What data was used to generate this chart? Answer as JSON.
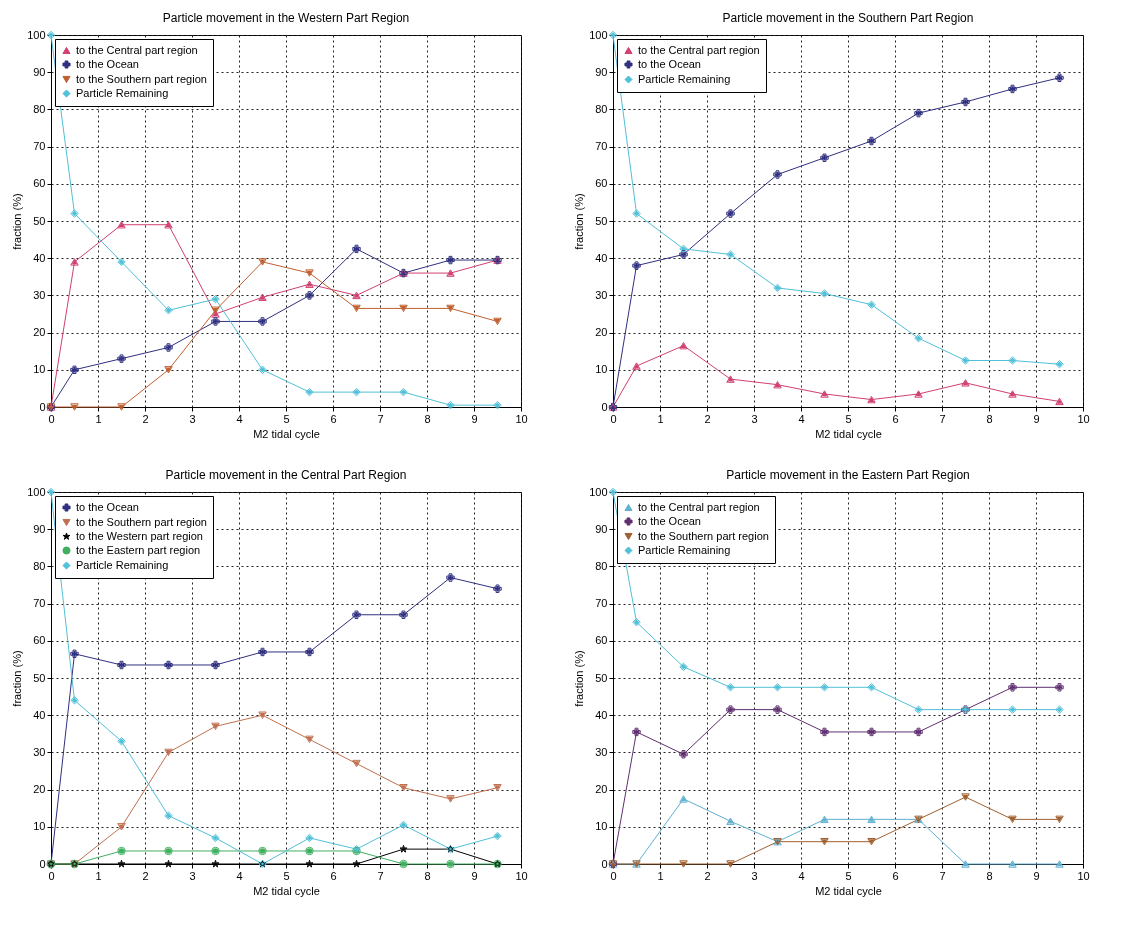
{
  "chart_data": [
    {
      "type": "line",
      "title": "Particle movement in the Western Part Region",
      "xlabel": "M2 tidal cycle",
      "ylabel": "fraction (%)",
      "x": [
        0,
        0.5,
        1.5,
        2.5,
        3.5,
        4.5,
        5.5,
        6.5,
        7.5,
        8.5,
        9.5
      ],
      "xlim": [
        0,
        10
      ],
      "xticks": [
        0,
        1,
        2,
        3,
        4,
        5,
        6,
        7,
        8,
        9,
        10
      ],
      "ylim": [
        0,
        100
      ],
      "yticks": [
        0,
        10,
        20,
        30,
        40,
        50,
        60,
        70,
        80,
        90,
        100
      ],
      "grid": true,
      "legend": "top left",
      "series": [
        {
          "name": "to the Central part region",
          "color": "#d04070",
          "marker": "triangle",
          "values": [
            0,
            39,
            49,
            49,
            25,
            29.5,
            33,
            30,
            36,
            36,
            39.5
          ]
        },
        {
          "name": "to the Ocean",
          "color": "#303080",
          "marker": "cross",
          "values": [
            0,
            10,
            13,
            16,
            23,
            23,
            30,
            42.5,
            36,
            39.5,
            39.5
          ]
        },
        {
          "name": "to the Southern part region",
          "color": "#c06030",
          "marker": "triangle-down",
          "values": [
            0,
            0,
            0,
            10,
            26,
            39,
            36,
            26.5,
            26.5,
            26.5,
            23
          ]
        },
        {
          "name": "Particle Remaining",
          "color": "#50c0d8",
          "marker": "diamond",
          "values": [
            100,
            52,
            39,
            26,
            29,
            10,
            4,
            4,
            4,
            0.5,
            0.5
          ]
        }
      ]
    },
    {
      "type": "line",
      "title": "Particle movement in the Southern Part Region",
      "xlabel": "M2 tidal cycle",
      "ylabel": "fraction (%)",
      "x": [
        0,
        0.5,
        1.5,
        2.5,
        3.5,
        4.5,
        5.5,
        6.5,
        7.5,
        8.5,
        9.5
      ],
      "xlim": [
        0,
        10
      ],
      "xticks": [
        0,
        1,
        2,
        3,
        4,
        5,
        6,
        7,
        8,
        9,
        10
      ],
      "ylim": [
        0,
        100
      ],
      "yticks": [
        0,
        10,
        20,
        30,
        40,
        50,
        60,
        70,
        80,
        90,
        100
      ],
      "grid": true,
      "legend": "top left",
      "series": [
        {
          "name": "to the Central part region",
          "color": "#d04070",
          "marker": "triangle",
          "values": [
            0,
            11,
            16.5,
            7.5,
            6,
            3.5,
            2,
            3.5,
            6.5,
            3.5,
            1.5
          ]
        },
        {
          "name": "to the Ocean",
          "color": "#303080",
          "marker": "cross",
          "values": [
            0,
            38,
            41,
            52,
            62.5,
            67,
            71.5,
            79,
            82,
            85.5,
            88.5
          ]
        },
        {
          "name": "Particle Remaining",
          "color": "#50c0d8",
          "marker": "diamond",
          "values": [
            100,
            52,
            42.5,
            41,
            32,
            30.5,
            27.5,
            18.5,
            12.5,
            12.5,
            11.5
          ]
        }
      ]
    },
    {
      "type": "line",
      "title": "Particle movement in the Central Part Region",
      "xlabel": "M2 tidal cycle",
      "ylabel": "fraction (%)",
      "x": [
        0,
        0.5,
        1.5,
        2.5,
        3.5,
        4.5,
        5.5,
        6.5,
        7.5,
        8.5,
        9.5
      ],
      "xlim": [
        0,
        10
      ],
      "xticks": [
        0,
        1,
        2,
        3,
        4,
        5,
        6,
        7,
        8,
        9,
        10
      ],
      "ylim": [
        0,
        100
      ],
      "yticks": [
        0,
        10,
        20,
        30,
        40,
        50,
        60,
        70,
        80,
        90,
        100
      ],
      "grid": true,
      "legend": "top left",
      "series": [
        {
          "name": "to the Ocean",
          "color": "#303080",
          "marker": "cross",
          "values": [
            0,
            56.5,
            53.5,
            53.5,
            53.5,
            57,
            57,
            67,
            67,
            77,
            74
          ]
        },
        {
          "name": "to the Southern part region",
          "color": "#c07050",
          "marker": "triangle-down",
          "values": [
            0,
            0,
            10,
            30,
            37,
            40,
            33.5,
            27,
            20.5,
            17.5,
            20.5
          ]
        },
        {
          "name": "to the Western part region",
          "color": "#000000",
          "marker": "star",
          "values": [
            0,
            0,
            0,
            0,
            0,
            0,
            0,
            0,
            4,
            4,
            0
          ]
        },
        {
          "name": "to the Eastern part region",
          "color": "#40b060",
          "marker": "circle",
          "values": [
            0,
            0,
            3.5,
            3.5,
            3.5,
            3.5,
            3.5,
            3.5,
            0,
            0,
            0
          ]
        },
        {
          "name": "Particle Remaining",
          "color": "#50c0d8",
          "marker": "diamond",
          "values": [
            100,
            44,
            33,
            13,
            7,
            0,
            7,
            4,
            10.5,
            4,
            7.5
          ]
        }
      ]
    },
    {
      "type": "line",
      "title": "Particle movement in the Eastern Part Region",
      "xlabel": "M2 tidal cycle",
      "ylabel": "fraction (%)",
      "x": [
        0,
        0.5,
        1.5,
        2.5,
        3.5,
        4.5,
        5.5,
        6.5,
        7.5,
        8.5,
        9.5
      ],
      "xlim": [
        0,
        10
      ],
      "xticks": [
        0,
        1,
        2,
        3,
        4,
        5,
        6,
        7,
        8,
        9,
        10
      ],
      "ylim": [
        0,
        100
      ],
      "yticks": [
        0,
        10,
        20,
        30,
        40,
        50,
        60,
        70,
        80,
        90,
        100
      ],
      "grid": true,
      "legend": "top left",
      "series": [
        {
          "name": "to the Central part region",
          "color": "#60b0d0",
          "marker": "triangle",
          "values": [
            0,
            0,
            17.5,
            11.5,
            6,
            12,
            12,
            12,
            0,
            0,
            0
          ]
        },
        {
          "name": "to the Ocean",
          "color": "#603070",
          "marker": "cross",
          "values": [
            0,
            35.5,
            29.5,
            41.5,
            41.5,
            35.5,
            35.5,
            35.5,
            41.5,
            47.5,
            47.5
          ]
        },
        {
          "name": "to the Southern part region",
          "color": "#a06030",
          "marker": "triangle-down",
          "values": [
            0,
            0,
            0,
            0,
            6,
            6,
            6,
            12,
            18,
            12,
            12
          ]
        },
        {
          "name": "Particle Remaining",
          "color": "#50c0d8",
          "marker": "diamond",
          "values": [
            100,
            65,
            53,
            47.5,
            47.5,
            47.5,
            47.5,
            41.5,
            41.5,
            41.5,
            41.5
          ]
        }
      ]
    }
  ]
}
